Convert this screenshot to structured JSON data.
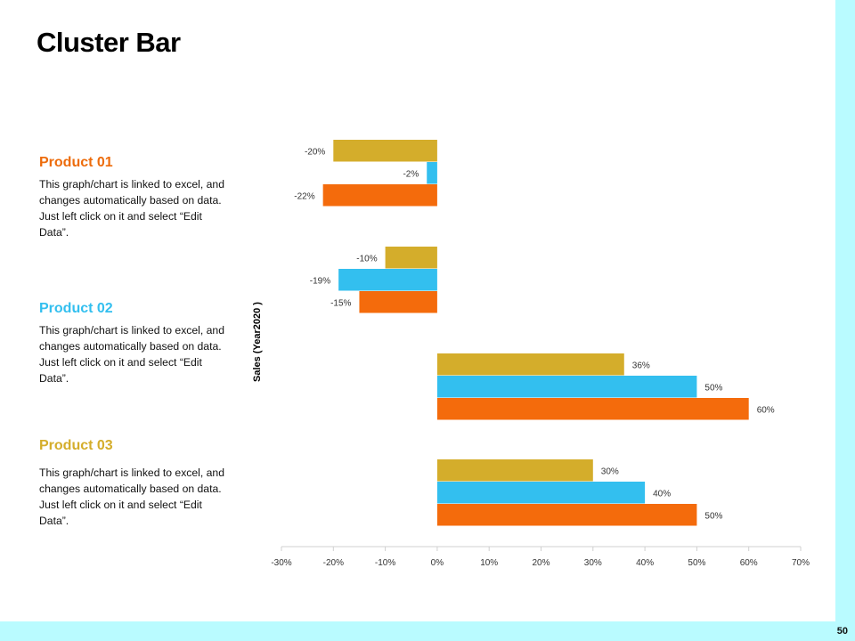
{
  "slide": {
    "title": "Cluster Bar",
    "page_number": "50"
  },
  "products": [
    {
      "title": "Product 01",
      "color": "#ed6c0c",
      "description": "This graph/chart is linked to excel, and changes automatically based on data. Just left click on it and select “Edit Data”."
    },
    {
      "title": "Product 02",
      "color": "#33bfef",
      "description": "This graph/chart is linked to excel, and changes automatically based on data. Just left click on it and select “Edit Data”."
    },
    {
      "title": "Product 03",
      "color": "#d4ad2b",
      "description": "This graph/chart is linked to excel, and changes automatically based on data. Just left click on it and select “Edit Data”."
    }
  ],
  "chart_data": {
    "type": "bar",
    "orientation": "horizontal",
    "ylabel": "Sales (Year2020  )",
    "xlim": [
      -30,
      70
    ],
    "x_ticks": [
      -30,
      -20,
      -10,
      0,
      10,
      20,
      30,
      40,
      50,
      60,
      70
    ],
    "x_tick_labels": [
      "-30%",
      "-20%",
      "-10%",
      "0%",
      "10%",
      "20%",
      "30%",
      "40%",
      "50%",
      "60%",
      "70%"
    ],
    "value_suffix": "%",
    "grid": false,
    "legend": "none",
    "groups": [
      {
        "bars": [
          {
            "value": -20,
            "color": "#d4ad2b"
          },
          {
            "value": -2,
            "color": "#33bfef"
          },
          {
            "value": -22,
            "color": "#f46b0c"
          }
        ]
      },
      {
        "bars": [
          {
            "value": -10,
            "color": "#d4ad2b"
          },
          {
            "value": -19,
            "color": "#33bfef"
          },
          {
            "value": -15,
            "color": "#f46b0c"
          }
        ]
      },
      {
        "bars": [
          {
            "value": 36,
            "color": "#d4ad2b"
          },
          {
            "value": 50,
            "color": "#33bfef"
          },
          {
            "value": 60,
            "color": "#f46b0c"
          }
        ]
      },
      {
        "bars": [
          {
            "value": 30,
            "color": "#d4ad2b"
          },
          {
            "value": 40,
            "color": "#33bfef"
          },
          {
            "value": 50,
            "color": "#f46b0c"
          }
        ]
      }
    ]
  }
}
